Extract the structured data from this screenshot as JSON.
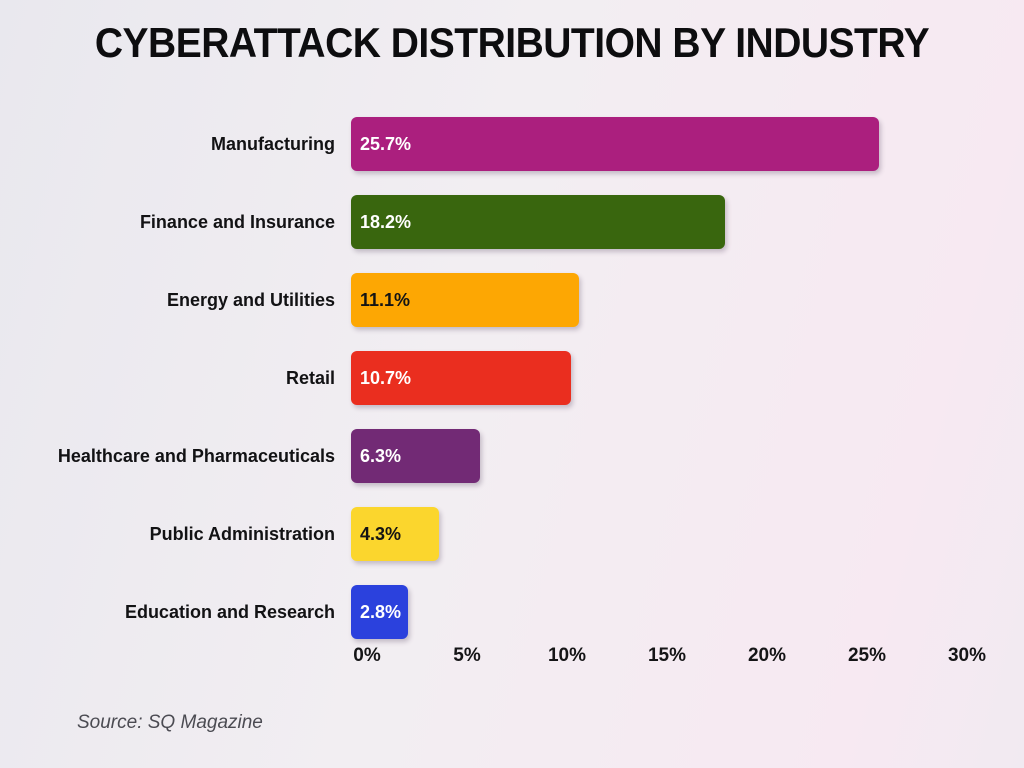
{
  "title": "CYBERATTACK DISTRIBUTION BY INDUSTRY",
  "source": "Source: SQ Magazine",
  "chart_data": {
    "type": "bar",
    "orientation": "horizontal",
    "title": "CYBERATTACK DISTRIBUTION BY INDUSTRY",
    "categories": [
      "Manufacturing",
      "Finance and Insurance",
      "Energy and Utilities",
      "Retail",
      "Healthcare and Pharmaceuticals",
      "Public Administration",
      "Education and Research"
    ],
    "values": [
      25.7,
      18.2,
      11.1,
      10.7,
      6.3,
      4.3,
      2.8
    ],
    "value_labels": [
      "25.7%",
      "18.2%",
      "11.1%",
      "10.7%",
      "6.3%",
      "4.3%",
      "2.8%"
    ],
    "bar_colors": [
      "#ab1f7e",
      "#39660e",
      "#fda703",
      "#ea2e1f",
      "#722a75",
      "#fbd62d",
      "#2b41dd"
    ],
    "value_label_colors": [
      "#ffffff",
      "#ffffff",
      "#141414",
      "#ffffff",
      "#ffffff",
      "#141414",
      "#ffffff"
    ],
    "xlim": [
      0,
      30
    ],
    "x_ticks": [
      "0%",
      "5%",
      "10%",
      "15%",
      "20%",
      "25%",
      "30%"
    ],
    "x_tick_values": [
      0,
      5,
      10,
      15,
      20,
      25,
      30
    ],
    "grid": false,
    "legend": false,
    "xlabel": "",
    "ylabel": ""
  }
}
